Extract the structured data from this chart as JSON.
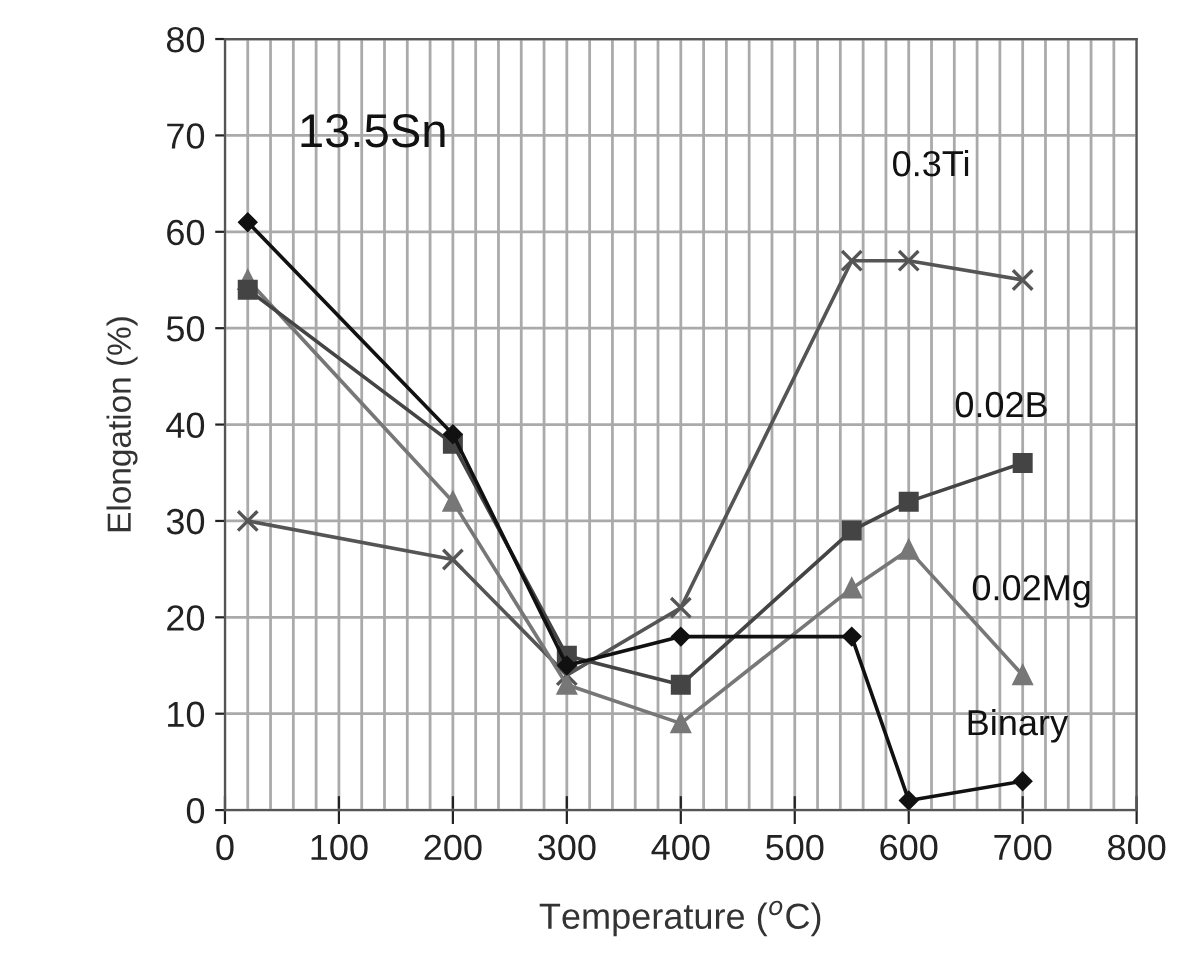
{
  "chart_data": {
    "type": "line",
    "xlabel": "Temperature ($^{o}$C)",
    "ylabel": "Elongation (%)",
    "annotations": [
      "13.5Sn"
    ],
    "xlim": [
      0,
      800
    ],
    "xticks": [
      0,
      100,
      200,
      300,
      400,
      500,
      600,
      700,
      800
    ],
    "ylim": [
      0,
      80
    ],
    "yticks": [
      0,
      10,
      20,
      30,
      40,
      50,
      60,
      70,
      80
    ],
    "grid": true,
    "series": [
      {
        "name": "Binary",
        "color": "#111111",
        "marker": "diamond",
        "x": [
          20,
          200,
          300,
          400,
          550,
          600,
          700
        ],
        "values": [
          61,
          39,
          15,
          18,
          18,
          1,
          3
        ]
      },
      {
        "name": "0.02B",
        "color": "#444444",
        "marker": "square",
        "x": [
          20,
          200,
          300,
          400,
          550,
          600,
          700
        ],
        "values": [
          54,
          38,
          16,
          13,
          29,
          32,
          36
        ]
      },
      {
        "name": "0.02Mg",
        "color": "#777777",
        "marker": "triangle",
        "x": [
          20,
          200,
          300,
          400,
          550,
          600,
          700
        ],
        "values": [
          55,
          32,
          13,
          9,
          23,
          27,
          14
        ]
      },
      {
        "name": "0.3Ti",
        "color": "#555555",
        "marker": "cross",
        "x": [
          20,
          200,
          300,
          400,
          550,
          600,
          700
        ],
        "values": [
          30,
          26,
          14,
          21,
          57,
          57,
          55
        ]
      }
    ]
  }
}
